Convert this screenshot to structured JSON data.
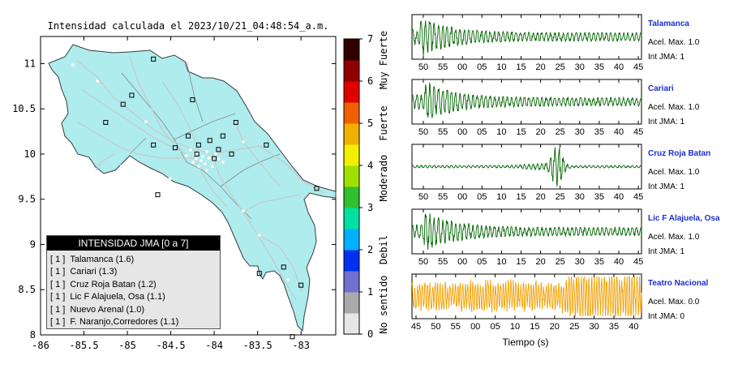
{
  "map": {
    "title": "Intensidad calculada el 2023/10/21_04:48:54_a.m.",
    "lon_ticks": [
      "-86",
      "-85.5",
      "-85",
      "-84.5",
      "-84",
      "-83.5",
      "-83"
    ],
    "lat_ticks": [
      "11",
      "10.5",
      "10",
      "9.5",
      "9",
      "8.5",
      "8"
    ],
    "colors": {
      "land": "#aeecee",
      "sea": "#ffffff",
      "roads": "#c8c8c8",
      "border": "#3a3a3a"
    }
  },
  "colorbar": {
    "ticks": [
      "7",
      "6",
      "5",
      "4",
      "3",
      "2",
      "1",
      "0"
    ],
    "categories": [
      "Muy Fuerte",
      "Fuerte",
      "Moderado",
      "Debil",
      "No sentido"
    ],
    "colors": [
      "#e6e6e6",
      "#aaaaaa",
      "#7070d0",
      "#0030f0",
      "#00b0ff",
      "#00e0a0",
      "#30c030",
      "#a0e000",
      "#f0f000",
      "#f0b000",
      "#f06000",
      "#e00000",
      "#900000",
      "#300000"
    ]
  },
  "legend": {
    "title": "INTENSIDAD JMA [0 a 7]",
    "items": [
      {
        "level": "[ 1 ]",
        "label": "Talamanca (1.6)"
      },
      {
        "level": "[ 1 ]",
        "label": "Cariari (1.3)"
      },
      {
        "level": "[ 1 ]",
        "label": "Cruz Roja Batan (1.2)"
      },
      {
        "level": "[ 1 ]",
        "label": "Lic F Alajuela, Osa (1.1)"
      },
      {
        "level": "[ 1 ]",
        "label": "Nuevo Arenal (1.0)"
      },
      {
        "level": "[ 1 ]",
        "label": "F. Naranjo,Corredores (1.1)"
      }
    ]
  },
  "waveforms": {
    "xlabel": "Tiempo (s)",
    "stations": [
      {
        "name": "Talamanca",
        "accel": "Acel. Max. 1.0",
        "jma": "Int JMA: 1",
        "color": "#006400",
        "ticks": [
          "50",
          "55",
          "00",
          "05",
          "10",
          "15",
          "20",
          "25",
          "30",
          "35",
          "40",
          "45"
        ]
      },
      {
        "name": "Cariari",
        "accel": "Acel. Max. 1.0",
        "jma": "Int JMA: 1",
        "color": "#006400",
        "ticks": [
          "50",
          "55",
          "00",
          "05",
          "10",
          "15",
          "20",
          "25",
          "30",
          "35",
          "40",
          "45"
        ]
      },
      {
        "name": "Cruz Roja Batan",
        "accel": "Acel. Max. 1.0",
        "jma": "Int JMA: 1",
        "color": "#006400",
        "ticks": [
          "50",
          "55",
          "00",
          "05",
          "10",
          "15",
          "20",
          "25",
          "30",
          "35",
          "40",
          "45"
        ]
      },
      {
        "name": "Lic F Alajuela, Osa",
        "accel": "Acel. Max. 1.0",
        "jma": "Int JMA: 1",
        "color": "#006400",
        "ticks": [
          "50",
          "55",
          "00",
          "05",
          "10",
          "15",
          "20",
          "25",
          "30",
          "35",
          "40",
          "45"
        ]
      },
      {
        "name": "Teatro Nacional",
        "accel": "Acel. Max. 0.0",
        "jma": "Int JMA: 0",
        "color": "#f0a000",
        "ticks": [
          "45",
          "50",
          "55",
          "00",
          "05",
          "10",
          "15",
          "20",
          "25",
          "30",
          "35",
          "40"
        ]
      }
    ]
  },
  "chart_data": [
    {
      "type": "scatter",
      "title": "Intensidad calculada el 2023/10/21_04:48:54_a.m.",
      "xlim": [
        -86,
        -82.6
      ],
      "ylim": [
        8,
        11.3
      ],
      "points": [
        {
          "x": -84.7,
          "y": 11.05
        },
        {
          "x": -84.25,
          "y": 10.6
        },
        {
          "x": -84.95,
          "y": 10.65
        },
        {
          "x": -85.05,
          "y": 10.55
        },
        {
          "x": -85.25,
          "y": 10.35
        },
        {
          "x": -84.7,
          "y": 10.1
        },
        {
          "x": -84.3,
          "y": 10.2
        },
        {
          "x": -84.18,
          "y": 10.1
        },
        {
          "x": -84.05,
          "y": 10.15
        },
        {
          "x": -83.9,
          "y": 10.2
        },
        {
          "x": -83.75,
          "y": 10.35
        },
        {
          "x": -83.4,
          "y": 10.1
        },
        {
          "x": -84.45,
          "y": 10.07
        },
        {
          "x": -84.2,
          "y": 10.0
        },
        {
          "x": -83.95,
          "y": 10.05
        },
        {
          "x": -83.8,
          "y": 10.0
        },
        {
          "x": -84.0,
          "y": 9.95
        },
        {
          "x": -84.65,
          "y": 9.55
        },
        {
          "x": -82.82,
          "y": 9.62
        },
        {
          "x": -83.2,
          "y": 8.75
        },
        {
          "x": -83.0,
          "y": 8.55
        },
        {
          "x": -83.48,
          "y": 8.68
        },
        {
          "x": -83.1,
          "y": 7.98
        }
      ]
    },
    {
      "type": "line",
      "title": "Talamanca",
      "xlabel": "Tiempo (s)",
      "tick_labels": [
        "50",
        "55",
        "00",
        "05",
        "10",
        "15",
        "20",
        "25",
        "30",
        "35",
        "40",
        "45"
      ],
      "series": [
        {
          "name": "Talamanca",
          "peak_time": 2,
          "peak_amplitude": 1.0,
          "amplitude_at_end": 0.2
        }
      ]
    },
    {
      "type": "line",
      "title": "Cariari",
      "xlabel": "Tiempo (s)",
      "tick_labels": [
        "50",
        "55",
        "00",
        "05",
        "10",
        "15",
        "20",
        "25",
        "30",
        "35",
        "40",
        "45"
      ],
      "series": [
        {
          "name": "Cariari",
          "peak_time": 3,
          "peak_amplitude": 1.0,
          "amplitude_at_end": 0.2
        }
      ]
    },
    {
      "type": "line",
      "title": "Cruz Roja Batan",
      "xlabel": "Tiempo (s)",
      "tick_labels": [
        "50",
        "55",
        "00",
        "05",
        "10",
        "15",
        "20",
        "25",
        "30",
        "35",
        "40",
        "45"
      ],
      "series": [
        {
          "name": "Cruz Roja Batan",
          "peak_time": 36,
          "peak_amplitude": 1.0,
          "amplitude_at_end": 0.05
        }
      ]
    },
    {
      "type": "line",
      "title": "Lic F Alajuela, Osa",
      "xlabel": "Tiempo (s)",
      "tick_labels": [
        "50",
        "55",
        "00",
        "05",
        "10",
        "15",
        "20",
        "25",
        "30",
        "35",
        "40",
        "45"
      ],
      "series": [
        {
          "name": "Lic F Alajuela, Osa",
          "peak_time": 3,
          "peak_amplitude": 1.0,
          "amplitude_at_end": 0.2
        }
      ]
    },
    {
      "type": "line",
      "title": "Teatro Nacional",
      "xlabel": "Tiempo (s)",
      "tick_labels": [
        "45",
        "50",
        "55",
        "00",
        "05",
        "10",
        "15",
        "20",
        "25",
        "30",
        "35",
        "40"
      ],
      "series": [
        {
          "name": "Teatro Nacional",
          "peak_time": 45,
          "peak_amplitude": 0.0,
          "amplitude_at_end": 0.0
        }
      ]
    }
  ]
}
